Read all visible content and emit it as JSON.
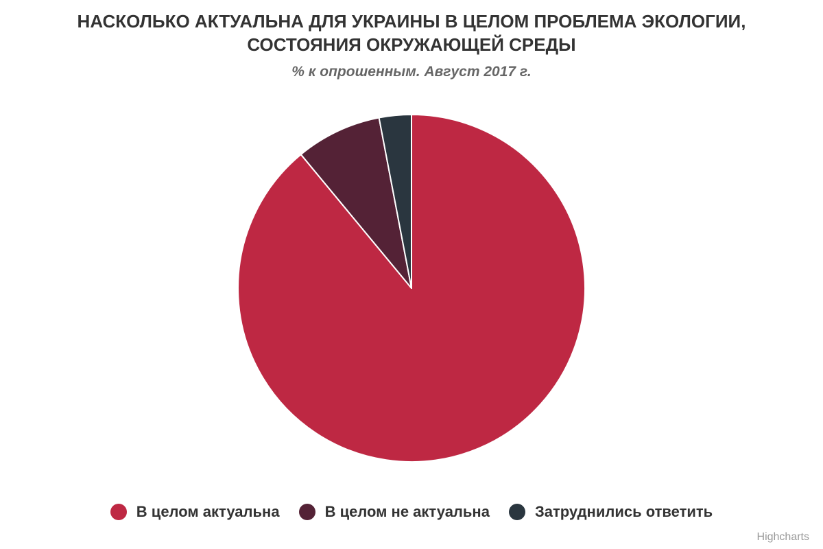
{
  "chart_data": {
    "type": "pie",
    "title_lines": [
      "НАСКОЛЬКО АКТУАЛЬНА ДЛЯ УКРАИНЫ В ЦЕЛОМ ПРОБЛЕМА ЭКОЛОГИИ,",
      "СОСТОЯНИЯ ОКРУЖАЮЩЕЙ СРЕДЫ"
    ],
    "subtitle": "% к опрошенным. Август 2017 г.",
    "slices": [
      {
        "name": "В целом актуальна",
        "value": 89,
        "color": "#be2843"
      },
      {
        "name": "В целом не актуальна",
        "value": 8,
        "color": "#542236"
      },
      {
        "name": "Затруднились ответить",
        "value": 3,
        "color": "#2a363f"
      }
    ],
    "legend_position": "bottom-center",
    "data_labels": false
  },
  "credits": "Highcharts"
}
